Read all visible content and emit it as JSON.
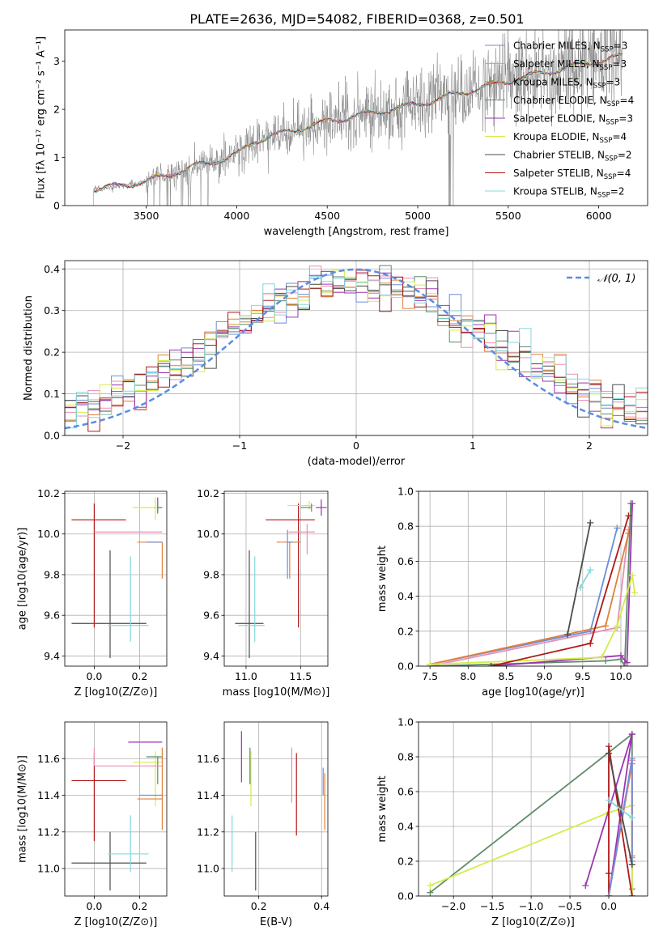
{
  "figure": {
    "title": "PLATE=2636, MJD=54082, FIBERID=0368, z=0.501"
  },
  "chart_data": [
    {
      "id": "spectrum",
      "type": "line",
      "xlabel": "wavelength [Angstrom, rest frame]",
      "ylabel": "Flux [fλ 10⁻¹⁷ erg cm⁻² s⁻¹ A⁻¹]",
      "xlim": [
        3050,
        6270
      ],
      "ylim": [
        0,
        3.65
      ],
      "xticks": [
        3500,
        4000,
        4500,
        5000,
        5500,
        6000
      ],
      "yticks": [
        0,
        1,
        2,
        3
      ],
      "grid": false,
      "legend_position": "top-right",
      "legend": [
        {
          "label": "Chabrier MILES, N",
          "sub": "SSP",
          "suffix": "=3",
          "color": "#6c8ed8"
        },
        {
          "label": "Salpeter MILES, N",
          "sub": "SSP",
          "suffix": "=3",
          "color": "#e88fb3"
        },
        {
          "label": "Kroupa MILES, N",
          "sub": "SSP",
          "suffix": "=3",
          "color": "#e0803a"
        },
        {
          "label": "Chabrier ELODIE, N",
          "sub": "SSP",
          "suffix": "=4",
          "color": "#5e8b67"
        },
        {
          "label": "Salpeter ELODIE, N",
          "sub": "SSP",
          "suffix": "=3",
          "color": "#9b35b0"
        },
        {
          "label": "Kroupa ELODIE, N",
          "sub": "SSP",
          "suffix": "=4",
          "color": "#d4ec4a"
        },
        {
          "label": "Chabrier STELIB, N",
          "sub": "SSP",
          "suffix": "=2",
          "color": "#4d4d4d"
        },
        {
          "label": "Salpeter STELIB, N",
          "sub": "SSP",
          "suffix": "=4",
          "color": "#b01818"
        },
        {
          "label": "Kroupa STELIB, N",
          "sub": "SSP",
          "suffix": "=2",
          "color": "#84d8dd"
        }
      ],
      "data_color": "#808080",
      "model_start": 3210,
      "data_end": 6130,
      "continuum_knots": [
        [
          3210,
          0.33
        ],
        [
          3500,
          0.5
        ],
        [
          3800,
          0.85
        ],
        [
          4000,
          1.05
        ],
        [
          4100,
          1.35
        ],
        [
          4500,
          1.75
        ],
        [
          5000,
          2.1
        ],
        [
          5200,
          2.3
        ],
        [
          5400,
          2.5
        ],
        [
          5800,
          2.85
        ],
        [
          6130,
          3.1
        ]
      ]
    },
    {
      "id": "residuals",
      "type": "histogram",
      "xlabel": "(data-model)/error",
      "ylabel": "Normed distribution",
      "xlim": [
        -2.5,
        2.5
      ],
      "ylim": [
        0,
        0.42
      ],
      "xticks": [
        -2,
        -1,
        0,
        1,
        2
      ],
      "yticks": [
        0.0,
        0.1,
        0.2,
        0.3,
        0.4
      ],
      "grid": true,
      "legend_position": "top-right",
      "legend": [
        {
          "label": "𝒩(0, 1)",
          "color": "#5b8de0",
          "dash": true
        }
      ],
      "bins": {
        "start": -2.5,
        "width": 0.1,
        "count": 50
      },
      "gaussian": {
        "mu": 0,
        "sigma": 1
      }
    },
    {
      "id": "age_vs_Z",
      "type": "errorbar",
      "xlabel": "Z [log10(Z/Z⊙)]",
      "ylabel": "age [log10(age/yr)]",
      "xlim": [
        -0.13,
        0.32
      ],
      "ylim": [
        9.35,
        10.21
      ],
      "xticks": [
        0.0,
        0.2
      ],
      "yticks": [
        9.4,
        9.6,
        9.8,
        10.0,
        10.2
      ],
      "grid": true,
      "points": [
        {
          "color": "#b01818",
          "x": 0.0,
          "xerr": [
            0.1,
            0.14
          ],
          "y": 10.07,
          "yerr": [
            0.53,
            0.08
          ]
        },
        {
          "color": "#9b35b0",
          "x": 0.28,
          "xerr": [
            0.02,
            0.02
          ],
          "y": 10.13,
          "yerr": [
            0.02,
            0.05
          ]
        },
        {
          "color": "#d4ec4a",
          "x": 0.27,
          "xerr": [
            0.1,
            0.03
          ],
          "y": 10.13,
          "yerr": [
            0.06,
            0.05
          ]
        },
        {
          "color": "#5e8b67",
          "x": 0.28,
          "xerr": [
            0.0,
            0.02
          ],
          "y": 10.13,
          "yerr": [
            0.03,
            0.03
          ]
        },
        {
          "color": "#e88fb3",
          "x": 0.0,
          "xerr": [
            0.0,
            0.3
          ],
          "y": 10.01,
          "yerr": [
            0.0,
            0.0
          ]
        },
        {
          "color": "#e0803a",
          "x": 0.3,
          "xerr": [
            0.11,
            0.0
          ],
          "y": 9.96,
          "yerr": [
            0.18,
            0.0
          ]
        },
        {
          "color": "#6c8ed8",
          "x": 0.3,
          "xerr": [
            0.07,
            0.0
          ],
          "y": 9.96,
          "yerr": [
            0.0,
            0.0
          ]
        },
        {
          "color": "#4d4d4d",
          "x": 0.07,
          "xerr": [
            0.17,
            0.16
          ],
          "y": 9.56,
          "yerr": [
            0.17,
            0.36
          ]
        },
        {
          "color": "#84d8dd",
          "x": 0.16,
          "xerr": [
            0.1,
            0.08
          ],
          "y": 9.55,
          "yerr": [
            0.08,
            0.34
          ]
        }
      ]
    },
    {
      "id": "age_vs_mass",
      "type": "errorbar",
      "xlabel": "mass [log10(M/M⊙)]",
      "ylabel": "",
      "xlim": [
        10.8,
        11.75
      ],
      "ylim": [
        9.35,
        10.21
      ],
      "xticks": [
        11.0,
        11.5
      ],
      "yticks": [
        9.4,
        9.6,
        9.8,
        10.0,
        10.2
      ],
      "grid": true,
      "points": [
        {
          "color": "#b01818",
          "x": 11.48,
          "xerr": [
            0.3,
            0.15
          ],
          "y": 10.07,
          "yerr": [
            0.53,
            0.08
          ]
        },
        {
          "color": "#9b35b0",
          "x": 11.69,
          "xerr": [
            0.05,
            0.05
          ],
          "y": 10.13,
          "yerr": [
            0.04,
            0.04
          ]
        },
        {
          "color": "#d4ec4a",
          "x": 11.58,
          "xerr": [
            0.2,
            0.05
          ],
          "y": 10.14,
          "yerr": [
            0.02,
            0.02
          ]
        },
        {
          "color": "#5e8b67",
          "x": 11.6,
          "xerr": [
            0.1,
            0.0
          ],
          "y": 10.13,
          "yerr": [
            0.02,
            0.02
          ]
        },
        {
          "color": "#e88fb3",
          "x": 11.56,
          "xerr": [
            0.17,
            0.07
          ],
          "y": 10.01,
          "yerr": [
            0.11,
            0.04
          ]
        },
        {
          "color": "#e0803a",
          "x": 11.4,
          "xerr": [
            0.12,
            0.1
          ],
          "y": 9.96,
          "yerr": [
            0.18,
            0.0
          ]
        },
        {
          "color": "#6c8ed8",
          "x": 11.38,
          "xerr": [
            0.0,
            0.05
          ],
          "y": 9.96,
          "yerr": [
            0.18,
            0.06
          ]
        },
        {
          "color": "#4d4d4d",
          "x": 11.03,
          "xerr": [
            0.13,
            0.13
          ],
          "y": 9.56,
          "yerr": [
            0.17,
            0.36
          ]
        },
        {
          "color": "#84d8dd",
          "x": 11.08,
          "xerr": [
            0.15,
            0.09
          ],
          "y": 9.55,
          "yerr": [
            0.08,
            0.34
          ]
        }
      ]
    },
    {
      "id": "massweight_vs_age",
      "type": "line",
      "xlabel": "age [log10(age/yr)]",
      "ylabel": "mass weight",
      "xlim": [
        7.35,
        10.35
      ],
      "ylim": [
        0.0,
        1.0
      ],
      "xticks": [
        7.5,
        8.0,
        8.5,
        9.0,
        9.5,
        10.0
      ],
      "yticks": [
        0.0,
        0.2,
        0.4,
        0.6,
        0.8,
        1.0
      ],
      "grid": true,
      "series": [
        {
          "color": "#6c8ed8",
          "x": [
            7.5,
            9.6,
            9.95
          ],
          "y": [
            0.01,
            0.2,
            0.79
          ]
        },
        {
          "color": "#e88fb3",
          "x": [
            7.5,
            9.95,
            10.1
          ],
          "y": [
            0.0,
            0.22,
            0.78
          ]
        },
        {
          "color": "#e0803a",
          "x": [
            7.5,
            9.8,
            10.1
          ],
          "y": [
            0.01,
            0.23,
            0.76
          ]
        },
        {
          "color": "#5e8b67",
          "x": [
            7.5,
            9.8,
            10.0,
            10.05,
            10.13
          ],
          "y": [
            0.0,
            0.03,
            0.04,
            0.0,
            0.93
          ]
        },
        {
          "color": "#9b35b0",
          "x": [
            8.3,
            10.0,
            10.08,
            10.15
          ],
          "y": [
            0.0,
            0.06,
            0.02,
            0.93
          ]
        },
        {
          "color": "#d4ec4a",
          "x": [
            7.5,
            9.75,
            9.95,
            10.15,
            10.18
          ],
          "y": [
            0.01,
            0.05,
            0.23,
            0.52,
            0.42
          ]
        },
        {
          "color": "#4d4d4d",
          "x": [
            9.3,
            9.6
          ],
          "y": [
            0.18,
            0.82
          ]
        },
        {
          "color": "#b01818",
          "x": [
            8.3,
            9.6,
            10.1
          ],
          "y": [
            0.0,
            0.13,
            0.86
          ]
        },
        {
          "color": "#84d8dd",
          "x": [
            9.47,
            9.6
          ],
          "y": [
            0.45,
            0.55
          ]
        }
      ]
    },
    {
      "id": "mass_vs_Z",
      "type": "errorbar",
      "xlabel": "Z [log10(Z/Z⊙)]",
      "ylabel": "mass [log10(M/M⊙)]",
      "xlim": [
        -0.13,
        0.32
      ],
      "ylim": [
        10.85,
        11.8
      ],
      "xticks": [
        0.0,
        0.2
      ],
      "yticks": [
        11.0,
        11.2,
        11.4,
        11.6
      ],
      "grid": true,
      "points": [
        {
          "color": "#b01818",
          "x": 0.0,
          "xerr": [
            0.1,
            0.14
          ],
          "y": 11.48,
          "yerr": [
            0.33,
            0.15
          ]
        },
        {
          "color": "#9b35b0",
          "x": 0.28,
          "xerr": [
            0.13,
            0.02
          ],
          "y": 11.69,
          "yerr": [
            0.0,
            0.0
          ]
        },
        {
          "color": "#d4ec4a",
          "x": 0.27,
          "xerr": [
            0.1,
            0.03
          ],
          "y": 11.58,
          "yerr": [
            0.24,
            0.06
          ]
        },
        {
          "color": "#5e8b67",
          "x": 0.28,
          "xerr": [
            0.05,
            0.02
          ],
          "y": 11.61,
          "yerr": [
            0.15,
            0.0
          ]
        },
        {
          "color": "#e88fb3",
          "x": 0.0,
          "xerr": [
            0.0,
            0.3
          ],
          "y": 11.56,
          "yerr": [
            0.0,
            0.1
          ]
        },
        {
          "color": "#e0803a",
          "x": 0.3,
          "xerr": [
            0.11,
            0.0
          ],
          "y": 11.38,
          "yerr": [
            0.17,
            0.28
          ]
        },
        {
          "color": "#6c8ed8",
          "x": 0.3,
          "xerr": [
            0.1,
            0.0
          ],
          "y": 11.4,
          "yerr": [
            0.0,
            0.0
          ]
        },
        {
          "color": "#4d4d4d",
          "x": 0.07,
          "xerr": [
            0.17,
            0.16
          ],
          "y": 11.03,
          "yerr": [
            0.15,
            0.17
          ]
        },
        {
          "color": "#84d8dd",
          "x": 0.16,
          "xerr": [
            0.1,
            0.08
          ],
          "y": 11.08,
          "yerr": [
            0.1,
            0.21
          ]
        }
      ]
    },
    {
      "id": "mass_vs_EBV",
      "type": "errorbar",
      "xlabel": "E(B-V)",
      "ylabel": "",
      "xlim": [
        0.09,
        0.42
      ],
      "ylim": [
        10.85,
        11.8
      ],
      "xticks": [
        0.2,
        0.4
      ],
      "yticks": [
        11.0,
        11.2,
        11.4,
        11.6
      ],
      "grid": true,
      "points": [
        {
          "color": "#b01818",
          "x": 0.32,
          "yerr": [
            0.3,
            0.15
          ],
          "y": 11.48
        },
        {
          "color": "#9b35b0",
          "x": 0.145,
          "yerr": [
            0.22,
            0.06
          ],
          "y": 11.69
        },
        {
          "color": "#d4ec4a",
          "x": 0.175,
          "yerr": [
            0.24,
            0.06
          ],
          "y": 11.58
        },
        {
          "color": "#5e8b67",
          "x": 0.172,
          "yerr": [
            0.15,
            0.05
          ],
          "y": 11.61
        },
        {
          "color": "#e88fb3",
          "x": 0.305,
          "yerr": [
            0.2,
            0.1
          ],
          "y": 11.56
        },
        {
          "color": "#e0803a",
          "x": 0.41,
          "yerr": [
            0.17,
            0.14
          ],
          "y": 11.38
        },
        {
          "color": "#6c8ed8",
          "x": 0.405,
          "yerr": [
            0.0,
            0.15
          ],
          "y": 11.4
        },
        {
          "color": "#4d4d4d",
          "x": 0.19,
          "yerr": [
            0.15,
            0.17
          ],
          "y": 11.03
        },
        {
          "color": "#84d8dd",
          "x": 0.115,
          "yerr": [
            0.1,
            0.21
          ],
          "y": 11.08
        }
      ]
    },
    {
      "id": "massweight_vs_Z",
      "type": "line",
      "xlabel": "Z [log10(Z/Z⊙)]",
      "ylabel": "mass weight",
      "xlim": [
        -2.45,
        0.5
      ],
      "ylim": [
        0.0,
        1.0
      ],
      "xticks": [
        -2.0,
        -1.5,
        -1.0,
        -0.5,
        0.0
      ],
      "yticks": [
        0.0,
        0.2,
        0.4,
        0.6,
        0.8,
        1.0
      ],
      "grid": true,
      "series": [
        {
          "color": "#5e8b67",
          "x": [
            -2.3,
            0.3,
            0.3,
            0.3
          ],
          "y": [
            0.02,
            0.93,
            0.0,
            0.04
          ]
        },
        {
          "color": "#d4ec4a",
          "x": [
            -2.3,
            0.0,
            0.3,
            0.3
          ],
          "y": [
            0.06,
            0.48,
            0.52,
            0.0
          ]
        },
        {
          "color": "#9b35b0",
          "x": [
            -0.3,
            0.3,
            0.0
          ],
          "y": [
            0.06,
            0.93,
            0.0
          ]
        },
        {
          "color": "#b01818",
          "x": [
            0.0,
            0.0,
            0.0,
            0.3
          ],
          "y": [
            0.0,
            0.13,
            0.86,
            0.0
          ]
        },
        {
          "color": "#e0803a",
          "x": [
            0.0,
            0.3,
            0.3
          ],
          "y": [
            0.0,
            0.76,
            0.23
          ]
        },
        {
          "color": "#e88fb3",
          "x": [
            0.0,
            0.3,
            0.3
          ],
          "y": [
            0.0,
            0.78,
            0.22
          ]
        },
        {
          "color": "#6c8ed8",
          "x": [
            0.0,
            0.3,
            0.3
          ],
          "y": [
            0.0,
            0.79,
            0.2
          ]
        },
        {
          "color": "#4d4d4d",
          "x": [
            0.0,
            0.3
          ],
          "y": [
            0.82,
            0.18
          ]
        },
        {
          "color": "#84d8dd",
          "x": [
            0.0,
            0.3
          ],
          "y": [
            0.55,
            0.45
          ]
        }
      ]
    }
  ]
}
